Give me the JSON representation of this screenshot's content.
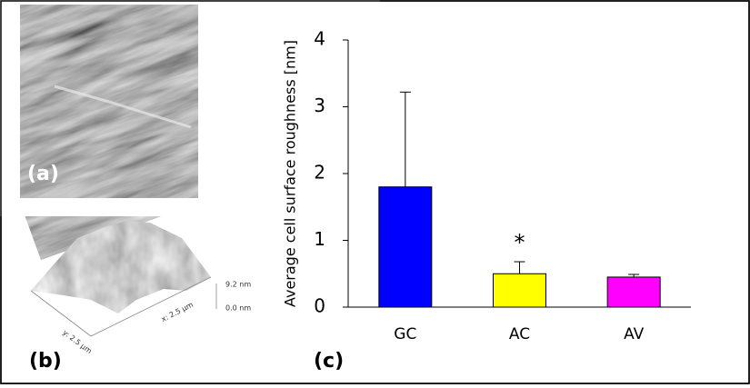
{
  "panels": {
    "a": "(a)",
    "b": "(b)"
  },
  "image_b": {
    "z_max": "9.2 nm",
    "z_min": "0.0 nm",
    "y_axis": "y: 2.5 μm",
    "x_axis": "x: 2.5 μm"
  },
  "chart_data": {
    "type": "bar",
    "panel_label": "(c)",
    "y_label": "Average cell surface roughness [nm]",
    "categories": [
      "GC",
      "AC",
      "AV"
    ],
    "values": [
      1.8,
      0.5,
      0.45
    ],
    "errors": [
      1.42,
      0.18,
      0.04
    ],
    "colors": [
      "#0000ff",
      "#ffff00",
      "#ff00ff"
    ],
    "annotations": [
      "*"
    ],
    "ylim": [
      0,
      4
    ],
    "yticks": [
      0,
      1,
      2,
      3,
      4
    ],
    "grid": false
  }
}
